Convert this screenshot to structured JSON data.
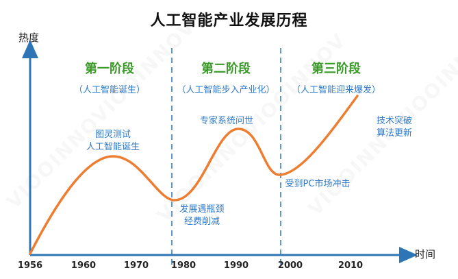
{
  "title": "人工智能产业发展历程",
  "axes": {
    "y_label": "热度",
    "x_label": "时间",
    "ticks": [
      "1956",
      "1960",
      "1970",
      "1980",
      "1990",
      "2000",
      "2010"
    ]
  },
  "stages": [
    {
      "name": "第一阶段",
      "subtitle": "（人工智能诞生）"
    },
    {
      "name": "第二阶段",
      "subtitle": "（人工智能步入产业化）"
    },
    {
      "name": "第三阶段",
      "subtitle": "（人工智能迎来爆发）"
    }
  ],
  "annotations": [
    {
      "lines": [
        "图灵测试",
        "人工智能诞生"
      ]
    },
    {
      "lines": [
        "发展遇瓶颈",
        "经费削减"
      ]
    },
    {
      "lines": [
        "专家系统问世"
      ]
    },
    {
      "lines": [
        "受到PC市场冲击"
      ]
    },
    {
      "lines": [
        "技术突破",
        "算法更新"
      ]
    }
  ],
  "watermark": "VIOOINNOVIOOINNOV",
  "colors": {
    "curve": "#ed7d31",
    "axis": "#2e75b6",
    "divider": "#2e75b6",
    "stage_name": "#3a9a28",
    "annotation": "#2f79c8"
  }
}
